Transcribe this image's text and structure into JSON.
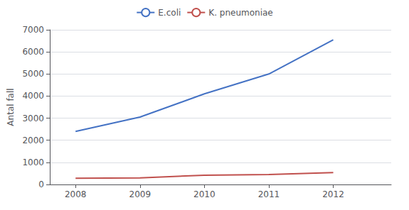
{
  "chart_data": {
    "type": "line",
    "x": [
      2008,
      2009,
      2010,
      2011,
      2012
    ],
    "series": [
      {
        "name": "E.coli",
        "color": "#4472C4",
        "values": [
          2400,
          3050,
          4100,
          5000,
          6550
        ]
      },
      {
        "name": "K. pneumoniae",
        "color": "#C0504D",
        "values": [
          280,
          300,
          420,
          450,
          540
        ]
      }
    ],
    "ylabel": "Antal fall",
    "xlim": [
      2007.6,
      2012.9
    ],
    "xticks": [
      2008,
      2009,
      2010,
      2011,
      2012
    ],
    "ylim": [
      0,
      7000
    ],
    "yticks": [
      0,
      1000,
      2000,
      3000,
      4000,
      5000,
      6000,
      7000
    ],
    "grid": true,
    "legend": "top"
  }
}
